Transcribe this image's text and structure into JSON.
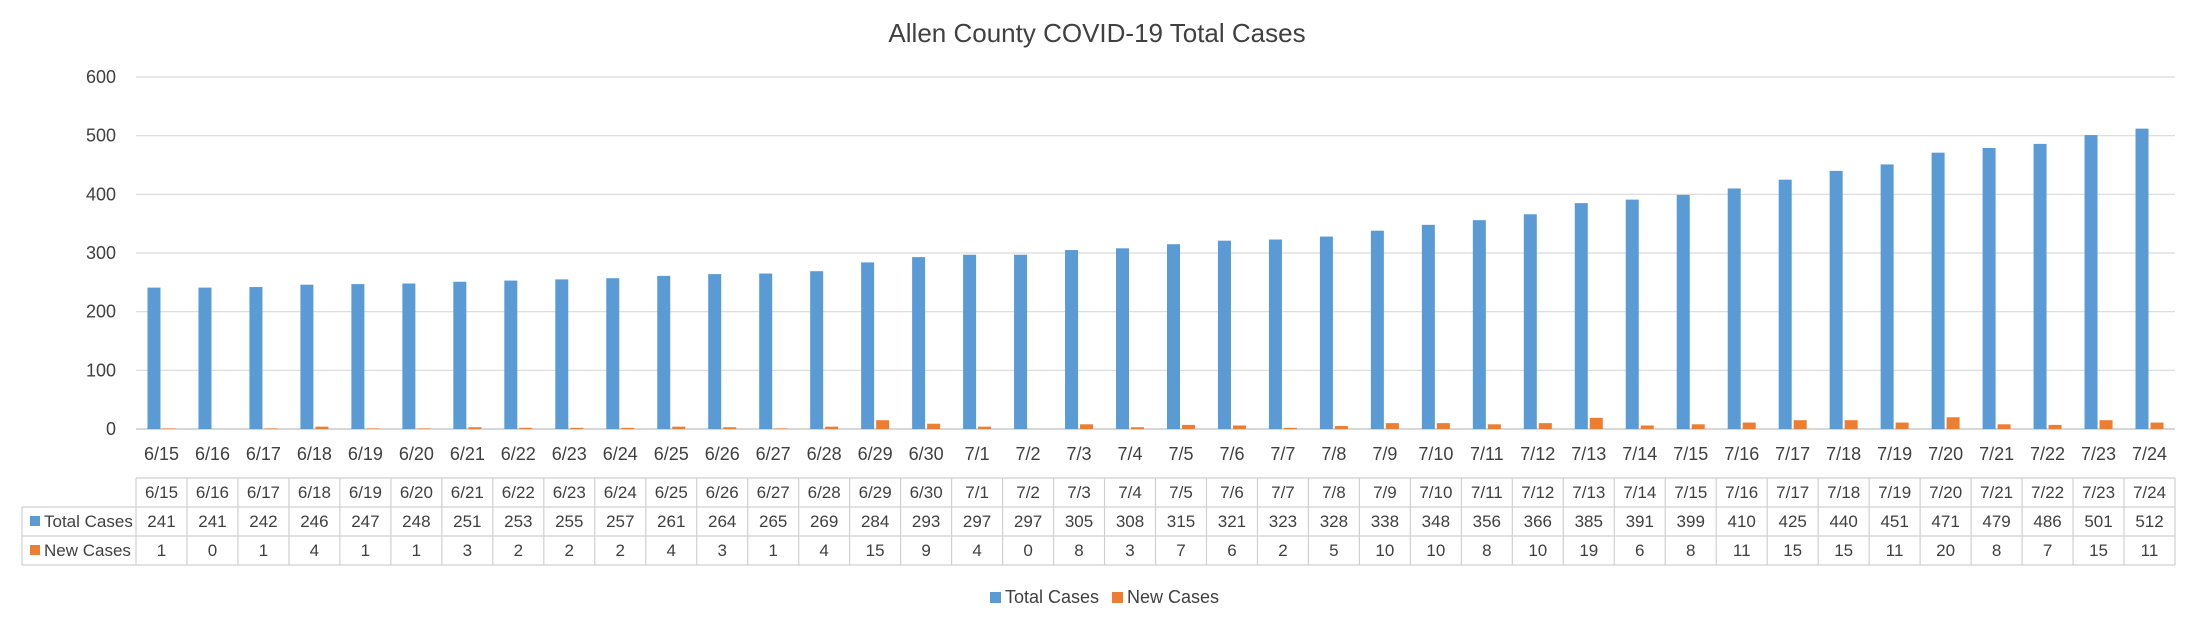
{
  "chart_data": {
    "type": "bar",
    "title": "Allen County COVID-19 Total Cases",
    "xlabel": "",
    "ylabel": "",
    "ylim": [
      0,
      600
    ],
    "yticks": [
      0,
      100,
      200,
      300,
      400,
      500,
      600
    ],
    "grid": true,
    "legend_position": "bottom",
    "data_table": true,
    "categories": [
      "6/15",
      "6/16",
      "6/17",
      "6/18",
      "6/19",
      "6/20",
      "6/21",
      "6/22",
      "6/23",
      "6/24",
      "6/25",
      "6/26",
      "6/27",
      "6/28",
      "6/29",
      "6/30",
      "7/1",
      "7/2",
      "7/3",
      "7/4",
      "7/5",
      "7/6",
      "7/7",
      "7/8",
      "7/9",
      "7/10",
      "7/11",
      "7/12",
      "7/13",
      "7/14",
      "7/15",
      "7/16",
      "7/17",
      "7/18",
      "7/19",
      "7/20",
      "7/21",
      "7/22",
      "7/23",
      "7/24"
    ],
    "series": [
      {
        "name": "Total Cases",
        "color": "#5B9BD5",
        "values": [
          241,
          241,
          242,
          246,
          247,
          248,
          251,
          253,
          255,
          257,
          261,
          264,
          265,
          269,
          284,
          293,
          297,
          297,
          305,
          308,
          315,
          321,
          323,
          328,
          338,
          348,
          356,
          366,
          385,
          391,
          399,
          410,
          425,
          440,
          451,
          471,
          479,
          486,
          501,
          512
        ]
      },
      {
        "name": "New Cases",
        "color": "#ED7D31",
        "values": [
          1,
          0,
          1,
          4,
          1,
          1,
          3,
          2,
          2,
          2,
          4,
          3,
          1,
          4,
          15,
          9,
          4,
          0,
          8,
          3,
          7,
          6,
          2,
          5,
          10,
          10,
          8,
          10,
          19,
          6,
          8,
          11,
          15,
          15,
          11,
          20,
          8,
          7,
          15,
          11
        ]
      }
    ]
  }
}
